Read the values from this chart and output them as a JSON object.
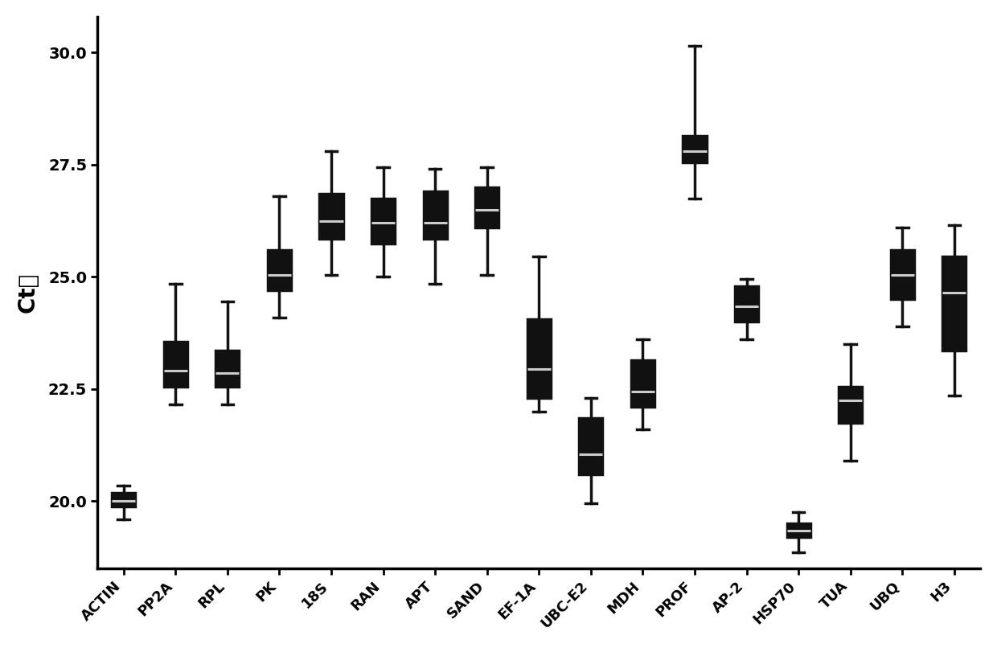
{
  "categories": [
    "ACTIN",
    "PP2A",
    "RPL",
    "PK",
    "18S",
    "RAN",
    "APT",
    "SAND",
    "EF-1A",
    "UBC-E2",
    "MDH",
    "PROF",
    "AP-2",
    "HSP70",
    "TUA",
    "UBQ",
    "H3"
  ],
  "ylabel": "Ct値",
  "ylim_min": 18.5,
  "ylim_max": 30.8,
  "yticks": [
    20.0,
    22.5,
    25.0,
    27.5,
    30.0
  ],
  "background_color": "#ffffff",
  "box_color": "#111111",
  "whisker_color": "#111111",
  "median_color": "#cccccc",
  "box_data": {
    "ACTIN": {
      "whislo": 19.6,
      "q1": 19.88,
      "med": 20.0,
      "q3": 20.18,
      "whishi": 20.35
    },
    "PP2A": {
      "whislo": 22.15,
      "q1": 22.55,
      "med": 22.9,
      "q3": 23.55,
      "whishi": 24.85
    },
    "RPL": {
      "whislo": 22.15,
      "q1": 22.55,
      "med": 22.85,
      "q3": 23.35,
      "whishi": 24.45
    },
    "PK": {
      "whislo": 24.1,
      "q1": 24.7,
      "med": 25.05,
      "q3": 25.6,
      "whishi": 26.8
    },
    "18S": {
      "whislo": 25.05,
      "q1": 25.85,
      "med": 26.25,
      "q3": 26.85,
      "whishi": 27.8
    },
    "RAN": {
      "whislo": 25.0,
      "q1": 25.75,
      "med": 26.2,
      "q3": 26.75,
      "whishi": 27.45
    },
    "APT": {
      "whislo": 24.85,
      "q1": 25.85,
      "med": 26.2,
      "q3": 26.9,
      "whishi": 27.4
    },
    "SAND": {
      "whislo": 25.05,
      "q1": 26.1,
      "med": 26.5,
      "q3": 27.0,
      "whishi": 27.45
    },
    "EF-1A": {
      "whislo": 22.0,
      "q1": 22.3,
      "med": 22.95,
      "q3": 24.05,
      "whishi": 25.45
    },
    "UBC-E2": {
      "whislo": 19.95,
      "q1": 20.6,
      "med": 21.05,
      "q3": 21.85,
      "whishi": 22.3
    },
    "MDH": {
      "whislo": 21.6,
      "q1": 22.1,
      "med": 22.45,
      "q3": 23.15,
      "whishi": 23.6
    },
    "PROF": {
      "whislo": 26.75,
      "q1": 27.55,
      "med": 27.8,
      "q3": 28.15,
      "whishi": 30.15
    },
    "AP-2": {
      "whislo": 23.6,
      "q1": 24.0,
      "med": 24.35,
      "q3": 24.8,
      "whishi": 24.95
    },
    "HSP70": {
      "whislo": 18.85,
      "q1": 19.2,
      "med": 19.35,
      "q3": 19.5,
      "whishi": 19.75
    },
    "TUA": {
      "whislo": 20.9,
      "q1": 21.75,
      "med": 22.25,
      "q3": 22.55,
      "whishi": 23.5
    },
    "UBQ": {
      "whislo": 23.9,
      "q1": 24.5,
      "med": 25.05,
      "q3": 25.6,
      "whishi": 26.1
    },
    "H3": {
      "whislo": 22.35,
      "q1": 23.35,
      "med": 24.65,
      "q3": 25.45,
      "whishi": 26.15
    }
  },
  "ylabel_fontsize": 20,
  "tick_fontsize": 13,
  "xlabel_rotation": 45,
  "figsize": [
    12.4,
    8.06
  ],
  "dpi": 100,
  "linewidth": 2.5,
  "box_width": 0.45
}
